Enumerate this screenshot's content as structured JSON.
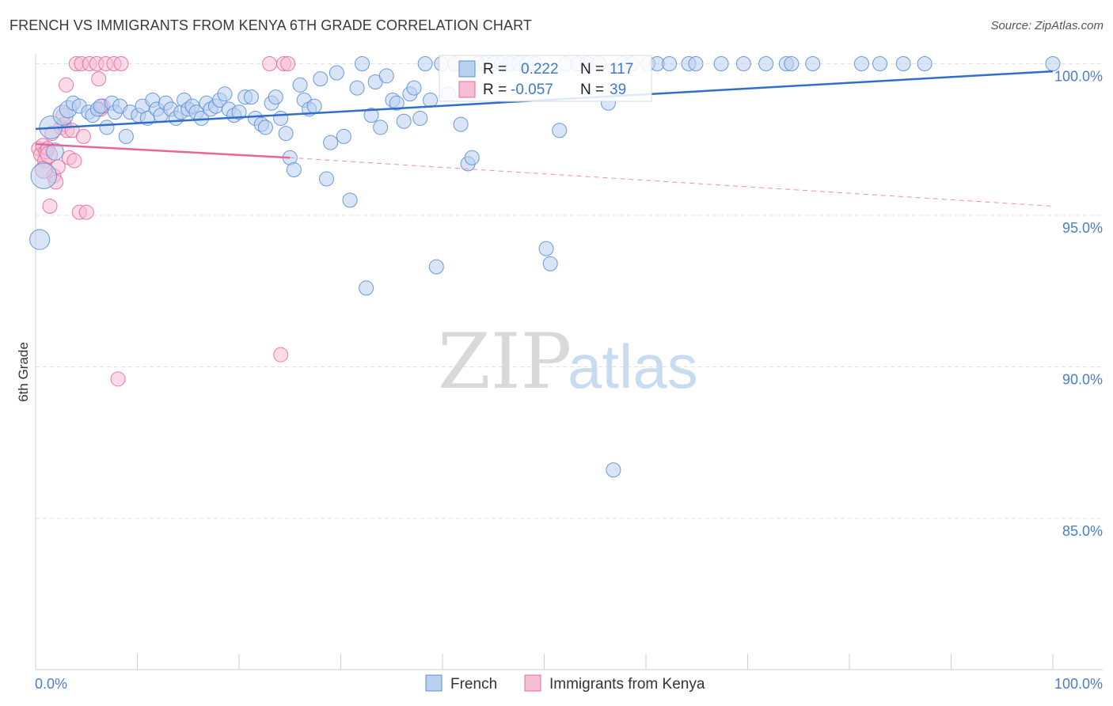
{
  "title": "FRENCH VS IMMIGRANTS FROM KENYA 6TH GRADE CORRELATION CHART",
  "source": "Source: ZipAtlas.com",
  "watermark": {
    "zip": "ZIP",
    "atlas": "atlas"
  },
  "colors": {
    "blue": "#5b8fd6",
    "blue_fill": "#b9d0f0",
    "pink": "#e76aa0",
    "pink_fill": "#f6bdd3",
    "grid": "#dddddd",
    "axis_text": "#4a7ec8"
  },
  "chart_data": {
    "type": "scatter",
    "title": "FRENCH VS IMMIGRANTS FROM KENYA 6TH GRADE CORRELATION CHART",
    "xlabel": "",
    "ylabel": "6th Grade",
    "xlim": [
      0,
      100
    ],
    "ylim": [
      80.0,
      101.5
    ],
    "x_tick_labels": [
      {
        "value": 0,
        "label": "0.0%"
      },
      {
        "value": 100,
        "label": "100.0%"
      }
    ],
    "y_ticks": [
      {
        "value": 100,
        "label": "100.0%"
      },
      {
        "value": 95,
        "label": "95.0%"
      },
      {
        "value": 90,
        "label": "90.0%"
      },
      {
        "value": 85,
        "label": "85.0%"
      }
    ],
    "legend": {
      "r_label": "R =",
      "n_label": "N =",
      "entries": [
        {
          "r": "0.222",
          "n": "117"
        },
        {
          "r": "-0.057",
          "n": "39"
        }
      ]
    },
    "series": [
      {
        "name": "French",
        "color": "blue",
        "trend": {
          "x": [
            0,
            100
          ],
          "y": [
            97.85,
            99.75
          ]
        },
        "points": [
          [
            0.4,
            94.2,
            14
          ],
          [
            0.8,
            96.3,
            18
          ],
          [
            1.5,
            97.9,
            16
          ],
          [
            1.9,
            97.1,
            12
          ],
          [
            2.7,
            98.3,
            14
          ],
          [
            3.2,
            98.5,
            12
          ],
          [
            3.7,
            98.7,
            10
          ],
          [
            4.3,
            98.6,
            10
          ],
          [
            5.2,
            98.4,
            10
          ],
          [
            5.6,
            98.3,
            10
          ],
          [
            6.1,
            98.5,
            10
          ],
          [
            6.4,
            98.6,
            10
          ],
          [
            7.0,
            97.9,
            10
          ],
          [
            7.5,
            98.7,
            10
          ],
          [
            7.8,
            98.4,
            10
          ],
          [
            8.3,
            98.6,
            10
          ],
          [
            8.9,
            97.6,
            10
          ],
          [
            9.3,
            98.4,
            10
          ],
          [
            10.1,
            98.3,
            10
          ],
          [
            10.5,
            98.6,
            10
          ],
          [
            11.0,
            98.2,
            10
          ],
          [
            11.5,
            98.8,
            10
          ],
          [
            11.9,
            98.5,
            10
          ],
          [
            12.3,
            98.3,
            10
          ],
          [
            12.8,
            98.7,
            10
          ],
          [
            13.3,
            98.5,
            10
          ],
          [
            13.8,
            98.2,
            10
          ],
          [
            14.3,
            98.4,
            10
          ],
          [
            14.6,
            98.8,
            10
          ],
          [
            15.0,
            98.5,
            10
          ],
          [
            15.4,
            98.6,
            10
          ],
          [
            15.8,
            98.4,
            10
          ],
          [
            16.3,
            98.2,
            10
          ],
          [
            16.8,
            98.7,
            10
          ],
          [
            17.2,
            98.5,
            10
          ],
          [
            17.7,
            98.6,
            10
          ],
          [
            18.1,
            98.8,
            10
          ],
          [
            18.6,
            99.0,
            10
          ],
          [
            19.0,
            98.5,
            10
          ],
          [
            19.5,
            98.3,
            10
          ],
          [
            20.0,
            98.4,
            10
          ],
          [
            20.6,
            98.9,
            10
          ],
          [
            21.2,
            98.9,
            10
          ],
          [
            21.6,
            98.2,
            10
          ],
          [
            22.2,
            98.0,
            10
          ],
          [
            22.6,
            97.9,
            10
          ],
          [
            23.2,
            98.7,
            10
          ],
          [
            23.6,
            98.9,
            10
          ],
          [
            24.1,
            98.2,
            10
          ],
          [
            24.6,
            97.7,
            10
          ],
          [
            25.0,
            96.9,
            10
          ],
          [
            25.4,
            96.5,
            10
          ],
          [
            26.0,
            99.3,
            10
          ],
          [
            26.4,
            98.8,
            10
          ],
          [
            26.9,
            98.5,
            10
          ],
          [
            27.4,
            98.6,
            10
          ],
          [
            28.0,
            99.5,
            10
          ],
          [
            28.6,
            96.2,
            10
          ],
          [
            29.0,
            97.4,
            10
          ],
          [
            29.6,
            99.7,
            10
          ],
          [
            30.3,
            97.6,
            10
          ],
          [
            30.9,
            95.5,
            10
          ],
          [
            31.6,
            99.2,
            10
          ],
          [
            32.1,
            100.0,
            10
          ],
          [
            32.5,
            92.6,
            10
          ],
          [
            33.0,
            98.3,
            10
          ],
          [
            33.4,
            99.4,
            10
          ],
          [
            33.9,
            97.9,
            10
          ],
          [
            34.5,
            99.6,
            10
          ],
          [
            35.1,
            98.8,
            10
          ],
          [
            35.5,
            98.7,
            10
          ],
          [
            36.2,
            98.1,
            10
          ],
          [
            36.8,
            99.0,
            10
          ],
          [
            37.2,
            99.2,
            10
          ],
          [
            37.8,
            98.2,
            10
          ],
          [
            38.3,
            100.0,
            10
          ],
          [
            38.8,
            98.8,
            10
          ],
          [
            39.4,
            93.3,
            10
          ],
          [
            39.9,
            100.0,
            10
          ],
          [
            40.6,
            99.0,
            10
          ],
          [
            41.2,
            100.0,
            10
          ],
          [
            41.8,
            98.0,
            10
          ],
          [
            42.5,
            96.7,
            10
          ],
          [
            42.9,
            96.9,
            10
          ],
          [
            43.5,
            100.0,
            10
          ],
          [
            44.2,
            100.0,
            10
          ],
          [
            45.0,
            100.0,
            10
          ],
          [
            45.8,
            100.0,
            10
          ],
          [
            46.6,
            100.0,
            10
          ],
          [
            47.5,
            100.0,
            10
          ],
          [
            48.3,
            100.0,
            10
          ],
          [
            49.1,
            100.0,
            10
          ],
          [
            50.2,
            93.9,
            10
          ],
          [
            50.6,
            93.4,
            10
          ],
          [
            51.5,
            97.8,
            10
          ],
          [
            52.1,
            100.0,
            10
          ],
          [
            53.3,
            100.0,
            10
          ],
          [
            54.2,
            100.0,
            10
          ],
          [
            55.4,
            100.0,
            10
          ],
          [
            56.3,
            98.7,
            10
          ],
          [
            56.8,
            86.6,
            10
          ],
          [
            57.7,
            100.0,
            10
          ],
          [
            58.6,
            100.0,
            10
          ],
          [
            60.2,
            100.0,
            10
          ],
          [
            61.1,
            100.0,
            10
          ],
          [
            62.3,
            100.0,
            10
          ],
          [
            64.2,
            100.0,
            10
          ],
          [
            64.9,
            100.0,
            10
          ],
          [
            67.4,
            100.0,
            10
          ],
          [
            69.6,
            100.0,
            10
          ],
          [
            71.8,
            100.0,
            10
          ],
          [
            73.8,
            100.0,
            10
          ],
          [
            74.3,
            100.0,
            10
          ],
          [
            76.4,
            100.0,
            10
          ],
          [
            81.2,
            100.0,
            10
          ],
          [
            83.0,
            100.0,
            10
          ],
          [
            85.3,
            100.0,
            10
          ],
          [
            87.4,
            100.0,
            10
          ],
          [
            100.0,
            100.0,
            10
          ]
        ]
      },
      {
        "name": "Immigrants from Kenya",
        "color": "pink",
        "trend": {
          "x": [
            0,
            25
          ],
          "y": [
            97.35,
            96.9
          ]
        },
        "trend_dashed": {
          "x": [
            25,
            100
          ],
          "y": [
            96.9,
            95.3
          ]
        },
        "points": [
          [
            0.3,
            97.2,
            10
          ],
          [
            0.5,
            97.0,
            10
          ],
          [
            0.7,
            97.3,
            10
          ],
          [
            0.9,
            96.8,
            10
          ],
          [
            1.0,
            97.1,
            10
          ],
          [
            1.2,
            97.2,
            10
          ],
          [
            1.4,
            95.3,
            10
          ],
          [
            1.6,
            97.7,
            10
          ],
          [
            1.8,
            96.3,
            10
          ],
          [
            2.0,
            96.1,
            10
          ],
          [
            2.2,
            96.6,
            10
          ],
          [
            2.5,
            97.9,
            10
          ],
          [
            2.7,
            98.3,
            10
          ],
          [
            2.8,
            98.0,
            10
          ],
          [
            3.0,
            99.3,
            10
          ],
          [
            3.1,
            97.8,
            10
          ],
          [
            3.3,
            96.9,
            10
          ],
          [
            3.6,
            97.8,
            10
          ],
          [
            3.8,
            96.8,
            10
          ],
          [
            4.0,
            100.0,
            10
          ],
          [
            4.3,
            95.1,
            10
          ],
          [
            4.5,
            100.0,
            10
          ],
          [
            4.7,
            97.6,
            10
          ],
          [
            5.0,
            95.1,
            10
          ],
          [
            5.3,
            100.0,
            10
          ],
          [
            6.0,
            100.0,
            10
          ],
          [
            6.2,
            99.5,
            10
          ],
          [
            6.4,
            98.5,
            10
          ],
          [
            6.6,
            98.6,
            10
          ],
          [
            6.9,
            100.0,
            10
          ],
          [
            7.7,
            100.0,
            10
          ],
          [
            8.1,
            89.6,
            10
          ],
          [
            8.4,
            100.0,
            10
          ],
          [
            23.0,
            100.0,
            10
          ],
          [
            24.1,
            90.4,
            10
          ],
          [
            24.4,
            100.0,
            10
          ],
          [
            24.8,
            100.0,
            10
          ],
          [
            0.8,
            96.5,
            12
          ],
          [
            1.3,
            97.0,
            12
          ]
        ]
      }
    ]
  },
  "bottom_legend": [
    {
      "label": "French"
    },
    {
      "label": "Immigrants from Kenya"
    }
  ]
}
